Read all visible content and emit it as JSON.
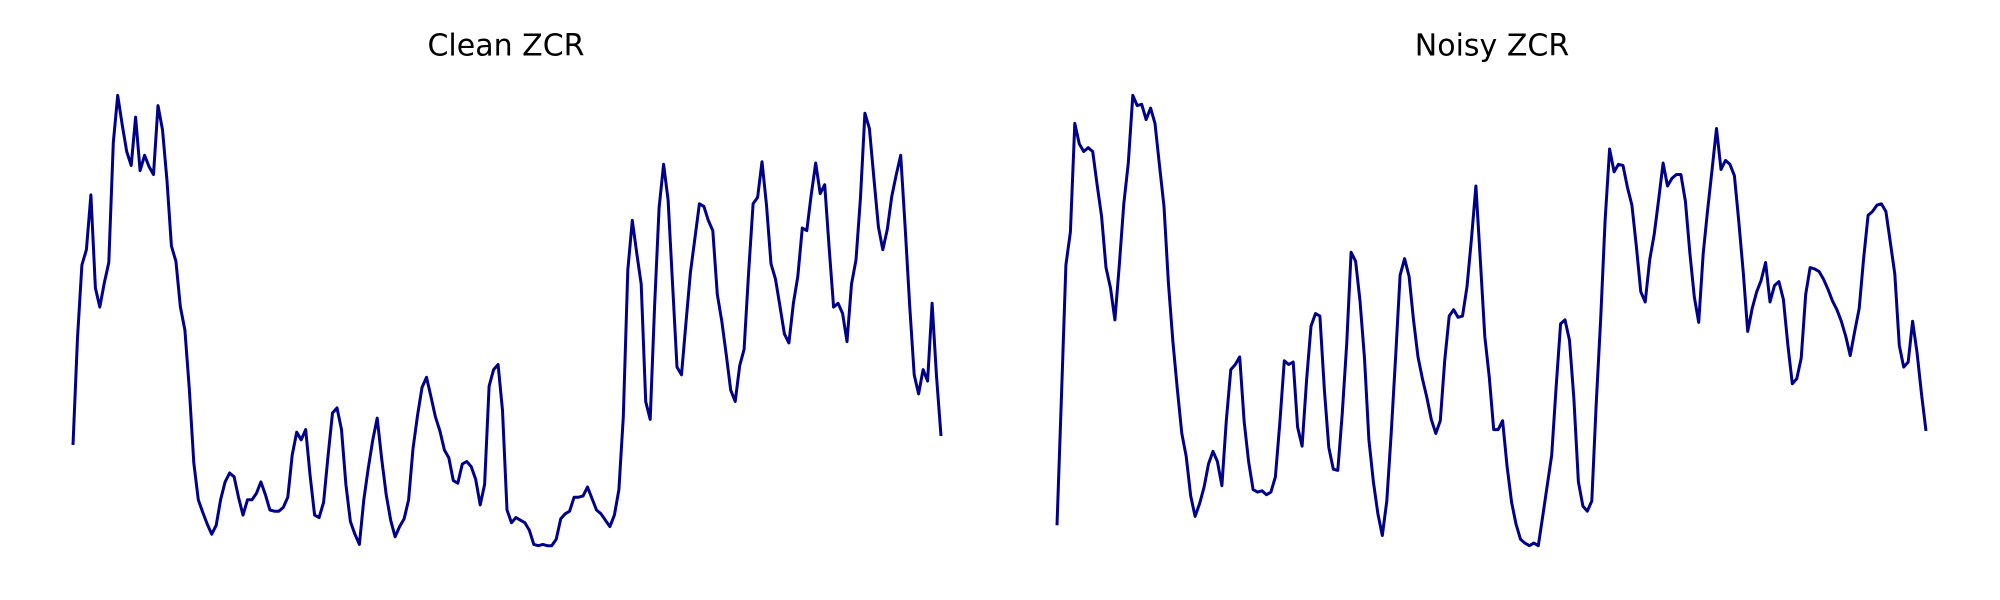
{
  "chart_data": [
    {
      "type": "line",
      "title": "Clean ZCR",
      "color": "#00008b",
      "ylim": [
        0,
        370
      ],
      "values": [
        91,
        175,
        232,
        244,
        287,
        214,
        199,
        218,
        234,
        328,
        365,
        342,
        321,
        310,
        348,
        306,
        318,
        309,
        303,
        357,
        338,
        298,
        247,
        235,
        199,
        181,
        135,
        77,
        48,
        38,
        29,
        21,
        28,
        48,
        62,
        69,
        66,
        50,
        36,
        48,
        48,
        53,
        62,
        52,
        40,
        39,
        39,
        42,
        50,
        83,
        101,
        95,
        103,
        67,
        36,
        34,
        46,
        82,
        116,
        120,
        103,
        60,
        31,
        21,
        13,
        48,
        73,
        95,
        112,
        80,
        52,
        32,
        19,
        27,
        33,
        48,
        88,
        114,
        136,
        144,
        129,
        113,
        102,
        87,
        81,
        63,
        61,
        76,
        78,
        74,
        64,
        44,
        60,
        137,
        150,
        154,
        118,
        40,
        30,
        34,
        32,
        30,
        24,
        13,
        12,
        13,
        12,
        12,
        17,
        33,
        37,
        39,
        50,
        50,
        51,
        58,
        49,
        40,
        37,
        32,
        27,
        36,
        56,
        113,
        228,
        267,
        241,
        217,
        125,
        111,
        200,
        277,
        311,
        283,
        218,
        152,
        146,
        187,
        226,
        253,
        280,
        278,
        267,
        259,
        209,
        188,
        162,
        134,
        125,
        153,
        166,
        226,
        280,
        285,
        313,
        279,
        233,
        221,
        200,
        178,
        171,
        202,
        223,
        261,
        259,
        287,
        312,
        288,
        295,
        246,
        199,
        202,
        194,
        172,
        217,
        236,
        285,
        351,
        339,
        300,
        262,
        244,
        260,
        286,
        303,
        318,
        261,
        200,
        146,
        131,
        150,
        141,
        202,
        145,
        98
      ]
    },
    {
      "type": "line",
      "title": "Noisy ZCR",
      "color": "#00008b",
      "ylim": [
        0,
        370
      ],
      "values": [
        28,
        130,
        232,
        258,
        343,
        327,
        321,
        324,
        321,
        295,
        270,
        230,
        214,
        189,
        233,
        280,
        312,
        365,
        357,
        358,
        346,
        355,
        343,
        310,
        278,
        218,
        172,
        135,
        100,
        82,
        51,
        35,
        45,
        58,
        76,
        86,
        78,
        59,
        110,
        150,
        154,
        160,
        109,
        78,
        56,
        54,
        55,
        52,
        54,
        66,
        108,
        157,
        154,
        156,
        105,
        90,
        142,
        184,
        194,
        192,
        134,
        89,
        72,
        71,
        115,
        170,
        242,
        235,
        204,
        159,
        95,
        62,
        37,
        20,
        47,
        100,
        161,
        224,
        237,
        223,
        189,
        160,
        143,
        128,
        111,
        100,
        110,
        157,
        192,
        197,
        191,
        192,
        215,
        252,
        294,
        235,
        176,
        144,
        103,
        103,
        110,
        74,
        46,
        29,
        17,
        14,
        12,
        14,
        12,
        35,
        59,
        83,
        136,
        186,
        189,
        173,
        127,
        62,
        43,
        39,
        47,
        123,
        190,
        267,
        323,
        305,
        311,
        310,
        293,
        279,
        247,
        211,
        203,
        236,
        256,
        283,
        312,
        294,
        300,
        303,
        303,
        282,
        242,
        207,
        187,
        241,
        275,
        307,
        339,
        307,
        314,
        311,
        302,
        266,
        226,
        180,
        198,
        211,
        220,
        234,
        203,
        216,
        219,
        205,
        169,
        139,
        143,
        159,
        209,
        230,
        229,
        227,
        221,
        213,
        204,
        197,
        188,
        176,
        161,
        180,
        198,
        237,
        271,
        274,
        279,
        280,
        274,
        250,
        225,
        169,
        152,
        156,
        188,
        163,
        131,
        102
      ]
    }
  ]
}
